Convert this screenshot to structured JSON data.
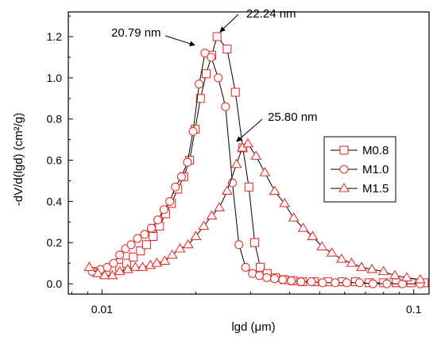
{
  "chart_data": {
    "type": "scatter",
    "xlabel": "lgd (μm)",
    "ylabel": "-dV/d(lgd) (cm²/g)",
    "xscale": "log",
    "xlim": [
      0.0078,
      0.112
    ],
    "ylim": [
      -0.05,
      1.32
    ],
    "xticks": [
      {
        "value": 0.01,
        "label": "0.01"
      },
      {
        "value": 0.1,
        "label": "0.1"
      }
    ],
    "yticks": [
      {
        "value": 0.0,
        "label": "0.0"
      },
      {
        "value": 0.2,
        "label": "0.2"
      },
      {
        "value": 0.4,
        "label": "0.4"
      },
      {
        "value": 0.6,
        "label": "0.6"
      },
      {
        "value": 0.8,
        "label": "0.8"
      },
      {
        "value": 1.0,
        "label": "1.0"
      },
      {
        "value": 1.2,
        "label": "1.2"
      }
    ],
    "grid": false,
    "legend_position": "right",
    "color": "#e8322c",
    "series": [
      {
        "name": "M0.8",
        "marker": "square",
        "x": [
          0.0096,
          0.0103,
          0.0109,
          0.0114,
          0.012,
          0.0126,
          0.0133,
          0.0139,
          0.0146,
          0.0153,
          0.016,
          0.0167,
          0.0175,
          0.0183,
          0.0191,
          0.0199,
          0.0207,
          0.0216,
          0.0225,
          0.0234,
          0.0252,
          0.0268,
          0.0283,
          0.0296,
          0.0309,
          0.0322,
          0.0339,
          0.036,
          0.0384,
          0.041,
          0.044,
          0.048,
          0.053,
          0.059,
          0.065,
          0.072,
          0.08,
          0.088,
          0.098,
          0.108
        ],
        "y": [
          0.06,
          0.06,
          0.07,
          0.08,
          0.1,
          0.13,
          0.16,
          0.19,
          0.23,
          0.28,
          0.34,
          0.39,
          0.46,
          0.52,
          0.6,
          0.75,
          0.9,
          1.02,
          1.11,
          1.2,
          1.14,
          0.93,
          0.66,
          0.47,
          0.2,
          0.08,
          0.05,
          0.03,
          0.02,
          0.015,
          0.01,
          0.01,
          0.01,
          0.01,
          0.01,
          0.005,
          0.005,
          0.005,
          0.005,
          0.005
        ]
      },
      {
        "name": "M1.0",
        "marker": "circle",
        "x": [
          0.0093,
          0.0099,
          0.0104,
          0.0109,
          0.0114,
          0.0119,
          0.0124,
          0.013,
          0.0137,
          0.0144,
          0.0151,
          0.0158,
          0.0165,
          0.0172,
          0.018,
          0.0188,
          0.0196,
          0.0205,
          0.0214,
          0.0224,
          0.0236,
          0.0249,
          0.0262,
          0.0275,
          0.0289,
          0.0304,
          0.032,
          0.0338,
          0.0358,
          0.038,
          0.0405,
          0.0435,
          0.047,
          0.051,
          0.056,
          0.061,
          0.067,
          0.074,
          0.082,
          0.092,
          0.105
        ],
        "y": [
          0.06,
          0.07,
          0.08,
          0.1,
          0.14,
          0.17,
          0.19,
          0.22,
          0.24,
          0.27,
          0.31,
          0.36,
          0.4,
          0.47,
          0.52,
          0.59,
          0.74,
          0.97,
          1.12,
          1.1,
          1.0,
          0.86,
          0.49,
          0.19,
          0.08,
          0.05,
          0.04,
          0.03,
          0.025,
          0.02,
          0.015,
          0.01,
          0.01,
          0.005,
          0.005,
          0.005,
          0.005,
          0.0,
          0.0,
          0.0,
          0.0
        ]
      },
      {
        "name": "M1.5",
        "marker": "triangle",
        "x": [
          0.0091,
          0.0097,
          0.0102,
          0.0108,
          0.0114,
          0.0121,
          0.0128,
          0.0135,
          0.0143,
          0.015,
          0.0159,
          0.0168,
          0.0178,
          0.0189,
          0.02,
          0.0212,
          0.0225,
          0.0238,
          0.0252,
          0.027,
          0.0282,
          0.0294,
          0.0312,
          0.0333,
          0.0358,
          0.0385,
          0.0412,
          0.0442,
          0.0474,
          0.0508,
          0.0546,
          0.0587,
          0.0632,
          0.068,
          0.0735,
          0.08,
          0.087,
          0.095,
          0.105
        ],
        "y": [
          0.08,
          0.05,
          0.04,
          0.04,
          0.06,
          0.07,
          0.08,
          0.08,
          0.09,
          0.1,
          0.11,
          0.14,
          0.17,
          0.19,
          0.23,
          0.28,
          0.33,
          0.37,
          0.45,
          0.58,
          0.66,
          0.68,
          0.62,
          0.54,
          0.45,
          0.39,
          0.32,
          0.27,
          0.23,
          0.18,
          0.15,
          0.12,
          0.1,
          0.08,
          0.07,
          0.06,
          0.04,
          0.03,
          0.02
        ]
      }
    ],
    "annotations": [
      {
        "text": "20.79 nm",
        "x": 0.0208,
        "y": 1.12
      },
      {
        "text": "22.24 nm",
        "x": 0.0231,
        "y": 1.2
      },
      {
        "text": "25.80 nm",
        "x": 0.0258,
        "y": 0.66
      }
    ]
  }
}
